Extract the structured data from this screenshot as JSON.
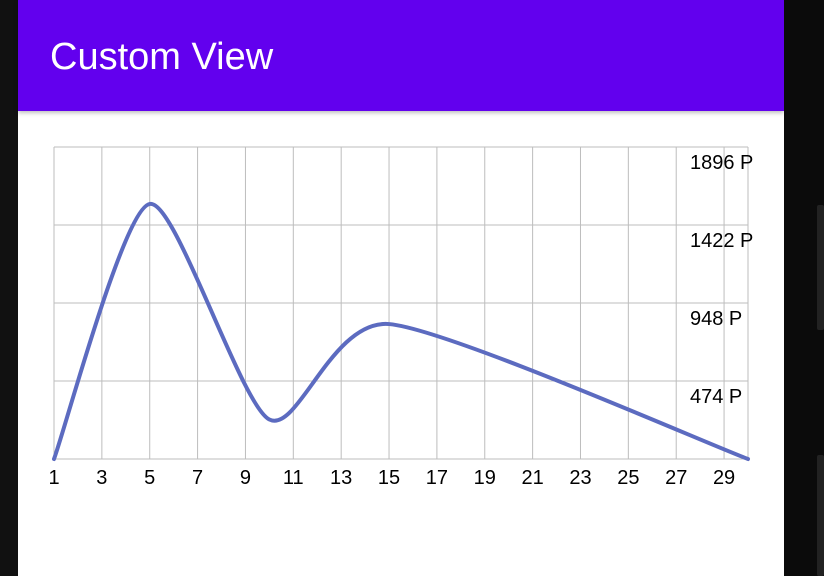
{
  "app_bar": {
    "title": "Custom View"
  },
  "colors": {
    "app_bar": "#6200EE",
    "line": "#5C6BC0",
    "grid": "#bdbdbd"
  },
  "chart_data": {
    "type": "line",
    "x": [
      1,
      5,
      10,
      15,
      30
    ],
    "series": [
      {
        "values": [
          0,
          1550,
          240,
          820,
          0
        ]
      }
    ],
    "xlim": [
      1,
      30
    ],
    "ylim": [
      0,
      1896
    ],
    "x_ticks": [
      "1",
      "3",
      "5",
      "7",
      "9",
      "11",
      "13",
      "15",
      "17",
      "19",
      "21",
      "23",
      "25",
      "27",
      "29"
    ],
    "y_ticks": [
      "474 P",
      "948 P",
      "1422 P",
      "1896 P"
    ],
    "grid": true
  }
}
